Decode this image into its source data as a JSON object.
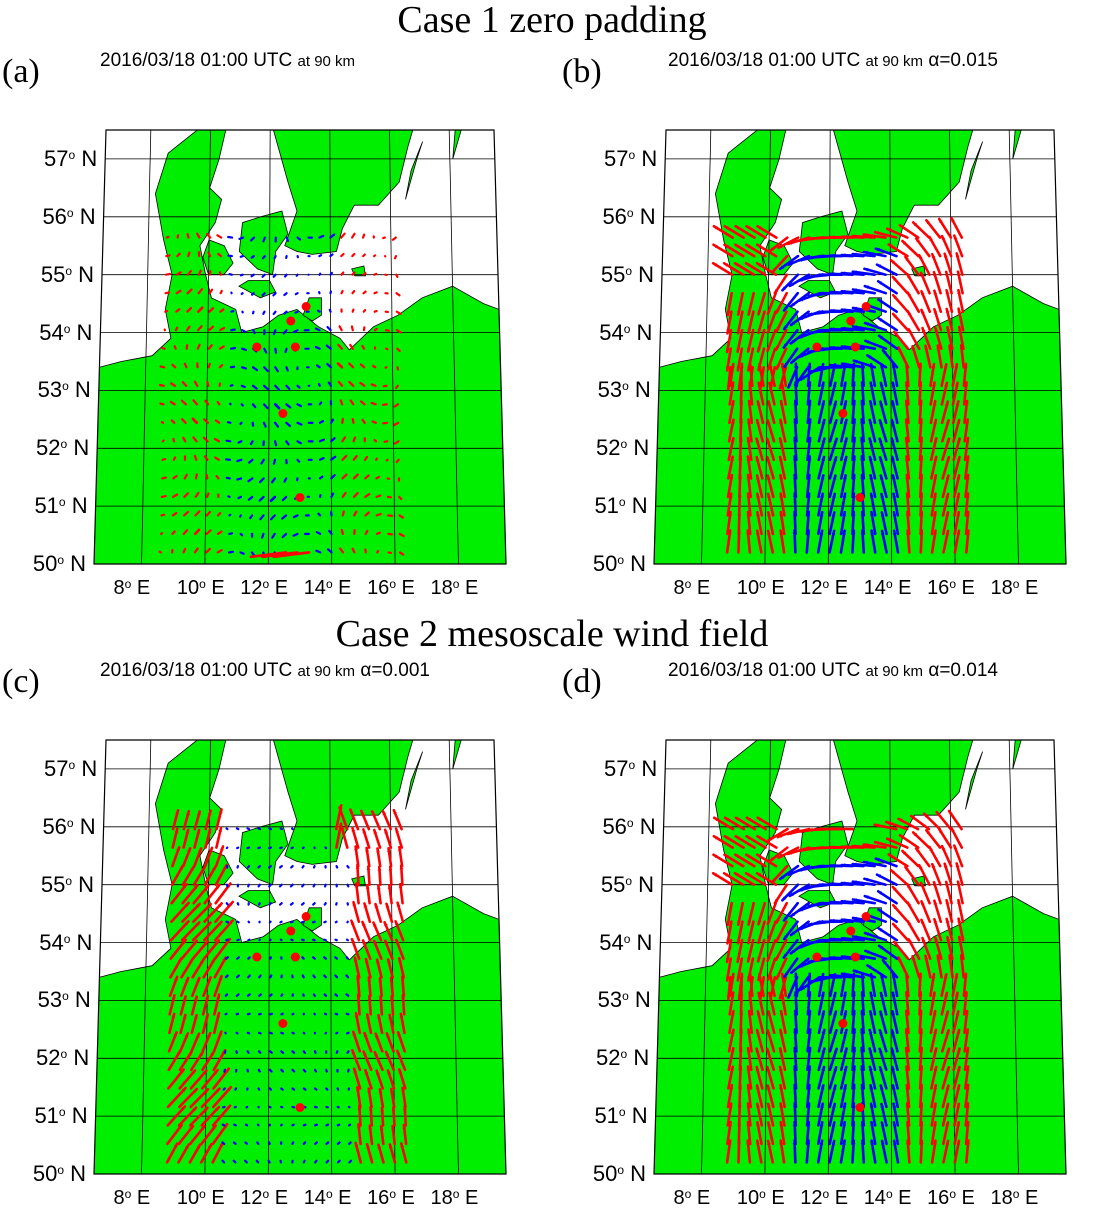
{
  "case1_title": "Case 1 zero padding",
  "case2_title": "Case 2 mesoscale wind field",
  "colors": {
    "land": "#00ee00",
    "sea": "#ffffff",
    "positive_vector": "#ff0000",
    "negative_vector": "#0000ff",
    "station": "#ff0000",
    "graticule": "#000000"
  },
  "lat_labels": [
    "57",
    "56",
    "55",
    "54",
    "53",
    "52",
    "51",
    "50"
  ],
  "lat_suffix": "N",
  "lon_labels": [
    "8",
    "10",
    "12",
    "14",
    "16",
    "18"
  ],
  "lon_suffix": "E",
  "degree_symbol": "o",
  "panels": [
    {
      "letter": "(a)",
      "datetime": "2016/03/18 01:00 UTC",
      "altitude": "at 90 km",
      "alpha": "",
      "field": "zero-padding"
    },
    {
      "letter": "(b)",
      "datetime": "2016/03/18 01:00 UTC",
      "altitude": "at 90 km",
      "alpha": "α=0.015",
      "field": "regularized"
    },
    {
      "letter": "(c)",
      "datetime": "2016/03/18 01:00 UTC",
      "altitude": "at 90 km",
      "alpha": "α=0.001",
      "field": "mesoscale-weak"
    },
    {
      "letter": "(d)",
      "datetime": "2016/03/18 01:00 UTC",
      "altitude": "at 90 km",
      "alpha": "α=0.014",
      "field": "regularized"
    }
  ],
  "stations": [
    {
      "lon": 13.2,
      "lat": 54.45
    },
    {
      "lon": 12.7,
      "lat": 54.2
    },
    {
      "lon": 11.6,
      "lat": 53.75
    },
    {
      "lon": 12.85,
      "lat": 53.75
    },
    {
      "lon": 12.45,
      "lat": 52.6
    },
    {
      "lon": 13.0,
      "lat": 51.15
    }
  ]
}
